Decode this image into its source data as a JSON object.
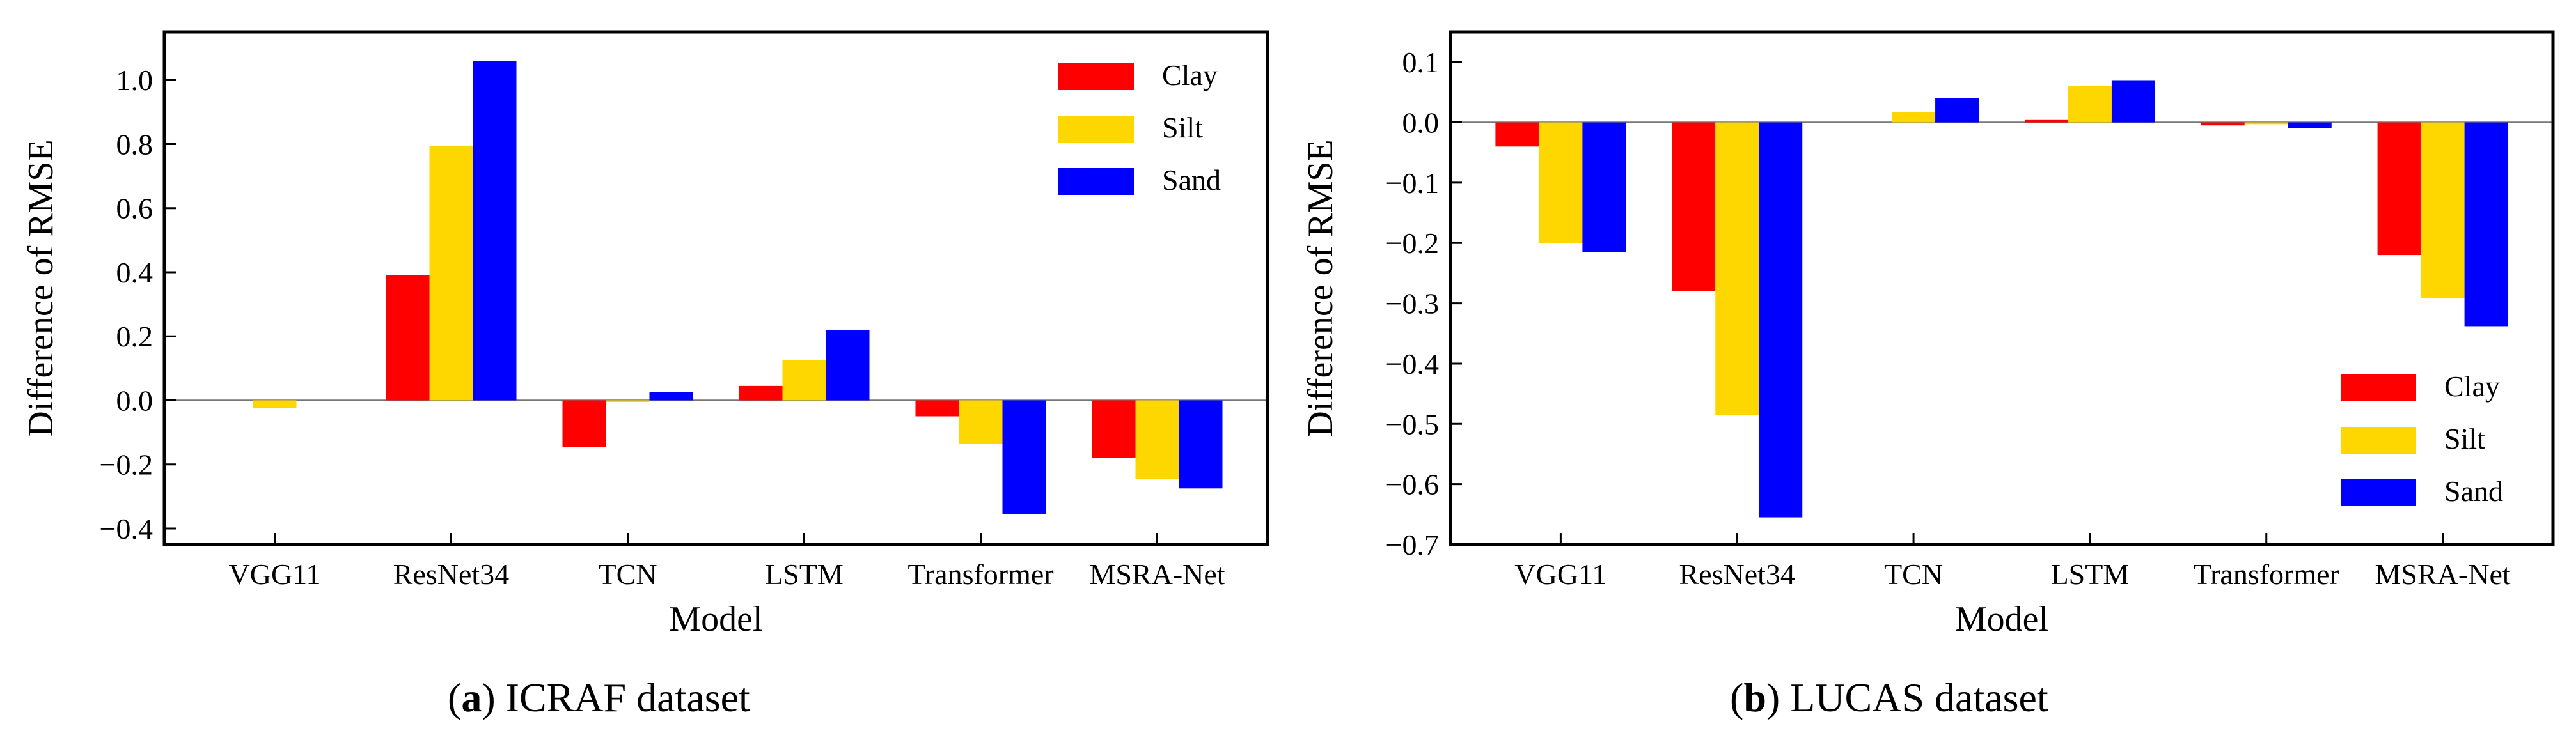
{
  "chart_data": [
    {
      "type": "bar",
      "panel": "a",
      "caption_text": "ICRAF dataset",
      "xlabel": "Model",
      "ylabel": "Difference of RMSE",
      "ylim": [
        -0.45,
        1.15
      ],
      "yticks": [
        -0.4,
        -0.2,
        0.0,
        0.2,
        0.4,
        0.6,
        0.8,
        1.0
      ],
      "ytick_labels": [
        "−0.4",
        "−0.2",
        "0.0",
        "0.2",
        "0.4",
        "0.6",
        "0.8",
        "1.0"
      ],
      "categories": [
        "VGG11",
        "ResNet34",
        "TCN",
        "LSTM",
        "Transformer",
        "MSRA-Net"
      ],
      "legend_position": "top-right",
      "series": [
        {
          "name": "Clay",
          "color": "#ff0000",
          "values": [
            0.0,
            0.39,
            -0.145,
            0.045,
            -0.05,
            -0.18
          ]
        },
        {
          "name": "Silt",
          "color": "#ffd700",
          "values": [
            -0.025,
            0.795,
            -0.005,
            0.125,
            -0.135,
            -0.245
          ]
        },
        {
          "name": "Sand",
          "color": "#0000ff",
          "values": [
            0.0,
            1.06,
            0.025,
            0.22,
            -0.355,
            -0.275
          ]
        }
      ]
    },
    {
      "type": "bar",
      "panel": "b",
      "caption_text": "LUCAS dataset",
      "xlabel": "Model",
      "ylabel": "Difference of RMSE",
      "ylim": [
        -0.7,
        0.15
      ],
      "yticks": [
        -0.7,
        -0.6,
        -0.5,
        -0.4,
        -0.3,
        -0.2,
        -0.1,
        0.0,
        0.1
      ],
      "ytick_labels": [
        "−0.7",
        "−0.6",
        "−0.5",
        "−0.4",
        "−0.3",
        "−0.2",
        "−0.1",
        "0.0",
        "0.1"
      ],
      "categories": [
        "VGG11",
        "ResNet34",
        "TCN",
        "LSTM",
        "Transformer",
        "MSRA-Net"
      ],
      "legend_position": "bottom-right",
      "series": [
        {
          "name": "Clay",
          "color": "#ff0000",
          "values": [
            -0.04,
            -0.28,
            0.0,
            0.005,
            -0.005,
            -0.22
          ]
        },
        {
          "name": "Silt",
          "color": "#ffd700",
          "values": [
            -0.2,
            -0.485,
            0.017,
            0.06,
            -0.003,
            -0.292
          ]
        },
        {
          "name": "Sand",
          "color": "#0000ff",
          "values": [
            -0.215,
            -0.655,
            0.04,
            0.07,
            -0.01,
            -0.338
          ]
        }
      ]
    }
  ]
}
